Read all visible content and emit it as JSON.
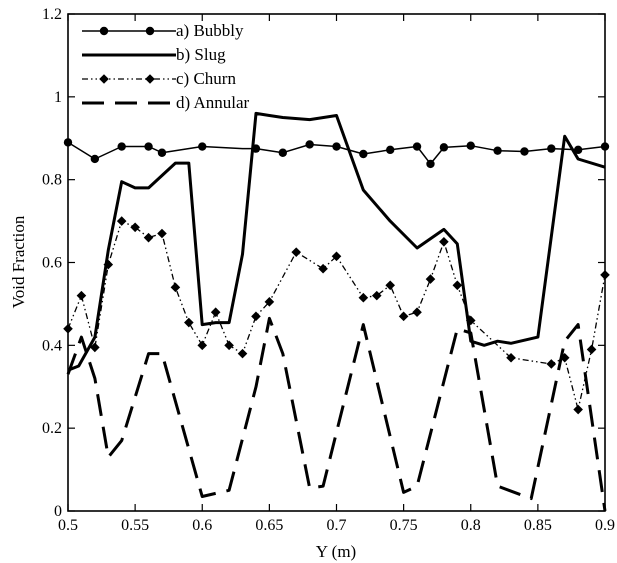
{
  "chart_data": {
    "type": "line",
    "title": "",
    "xlabel": "Y (m)",
    "ylabel": "Void Fraction",
    "xlim": [
      0.5,
      0.9
    ],
    "ylim": [
      0,
      1.2
    ],
    "xticks": [
      0.5,
      0.55,
      0.6,
      0.65,
      0.7,
      0.75,
      0.8,
      0.85,
      0.9
    ],
    "xtick_labels": [
      "0.5",
      "0.55",
      "0.6",
      "0.65",
      "0.7",
      "0.75",
      "0.8",
      "0.85",
      "0.9"
    ],
    "yticks": [
      0,
      0.2,
      0.4,
      0.6,
      0.8,
      1,
      1.2
    ],
    "ytick_labels": [
      "0",
      "0.2",
      "0.4",
      "0.6",
      "0.8",
      "1",
      "1.2"
    ],
    "grid": false,
    "legend_position": "top-left",
    "series": [
      {
        "name": "a) Bubbly",
        "line_style": "solid",
        "marker": "circle",
        "x": [
          0.5,
          0.52,
          0.54,
          0.56,
          0.57,
          0.6,
          0.63,
          0.64,
          0.66,
          0.68,
          0.7,
          0.72,
          0.74,
          0.76,
          0.77,
          0.78,
          0.8,
          0.82,
          0.84,
          0.86,
          0.88,
          0.9
        ],
        "y": [
          0.89,
          0.85,
          0.88,
          0.88,
          0.865,
          0.88,
          0.875,
          0.875,
          0.865,
          0.885,
          0.88,
          0.862,
          0.872,
          0.88,
          0.838,
          0.878,
          0.882,
          0.87,
          0.868,
          0.875,
          0.872,
          0.88
        ],
        "marker_x": [
          0.5,
          0.52,
          0.54,
          0.56,
          0.57,
          0.6,
          0.64,
          0.66,
          0.68,
          0.7,
          0.72,
          0.74,
          0.76,
          0.77,
          0.78,
          0.8,
          0.82,
          0.84,
          0.86,
          0.88,
          0.9
        ],
        "marker_y": [
          0.89,
          0.85,
          0.88,
          0.88,
          0.865,
          0.88,
          0.875,
          0.865,
          0.885,
          0.88,
          0.862,
          0.872,
          0.88,
          0.838,
          0.878,
          0.882,
          0.87,
          0.868,
          0.875,
          0.872,
          0.88
        ]
      },
      {
        "name": "b) Slug",
        "line_style": "solid-thick",
        "marker": "none",
        "x": [
          0.5,
          0.508,
          0.52,
          0.53,
          0.54,
          0.55,
          0.56,
          0.57,
          0.58,
          0.59,
          0.6,
          0.61,
          0.62,
          0.63,
          0.64,
          0.65,
          0.66,
          0.68,
          0.7,
          0.72,
          0.74,
          0.76,
          0.78,
          0.79,
          0.8,
          0.81,
          0.82,
          0.83,
          0.85,
          0.87,
          0.88,
          0.9
        ],
        "y": [
          0.34,
          0.35,
          0.42,
          0.63,
          0.795,
          0.78,
          0.78,
          0.81,
          0.84,
          0.84,
          0.45,
          0.455,
          0.455,
          0.62,
          0.96,
          0.955,
          0.95,
          0.945,
          0.955,
          0.775,
          0.7,
          0.635,
          0.68,
          0.645,
          0.41,
          0.4,
          0.41,
          0.405,
          0.42,
          0.905,
          0.85,
          0.83
        ]
      },
      {
        "name": "c) Churn",
        "line_style": "dash-dot",
        "marker": "diamond",
        "x": [
          0.5,
          0.51,
          0.52,
          0.53,
          0.54,
          0.55,
          0.56,
          0.57,
          0.58,
          0.59,
          0.6,
          0.61,
          0.62,
          0.63,
          0.64,
          0.65,
          0.67,
          0.69,
          0.7,
          0.72,
          0.73,
          0.74,
          0.75,
          0.76,
          0.77,
          0.78,
          0.79,
          0.8,
          0.83,
          0.86,
          0.87,
          0.88,
          0.89,
          0.9
        ],
        "y": [
          0.44,
          0.52,
          0.395,
          0.595,
          0.7,
          0.685,
          0.66,
          0.67,
          0.54,
          0.455,
          0.4,
          0.48,
          0.4,
          0.38,
          0.47,
          0.505,
          0.625,
          0.585,
          0.615,
          0.515,
          0.52,
          0.545,
          0.47,
          0.48,
          0.56,
          0.65,
          0.545,
          0.46,
          0.37,
          0.355,
          0.37,
          0.245,
          0.39,
          0.57
        ]
      },
      {
        "name": "d) Annular",
        "line_style": "long-dash",
        "marker": "none",
        "x": [
          0.5,
          0.51,
          0.52,
          0.53,
          0.54,
          0.56,
          0.57,
          0.6,
          0.62,
          0.64,
          0.65,
          0.66,
          0.68,
          0.69,
          0.72,
          0.75,
          0.76,
          0.79,
          0.8,
          0.82,
          0.845,
          0.87,
          0.88,
          0.9
        ],
        "y": [
          0.33,
          0.42,
          0.32,
          0.13,
          0.17,
          0.38,
          0.38,
          0.035,
          0.05,
          0.3,
          0.465,
          0.38,
          0.055,
          0.06,
          0.45,
          0.045,
          0.06,
          0.44,
          0.43,
          0.06,
          0.03,
          0.41,
          0.45,
          0.0
        ]
      }
    ]
  }
}
